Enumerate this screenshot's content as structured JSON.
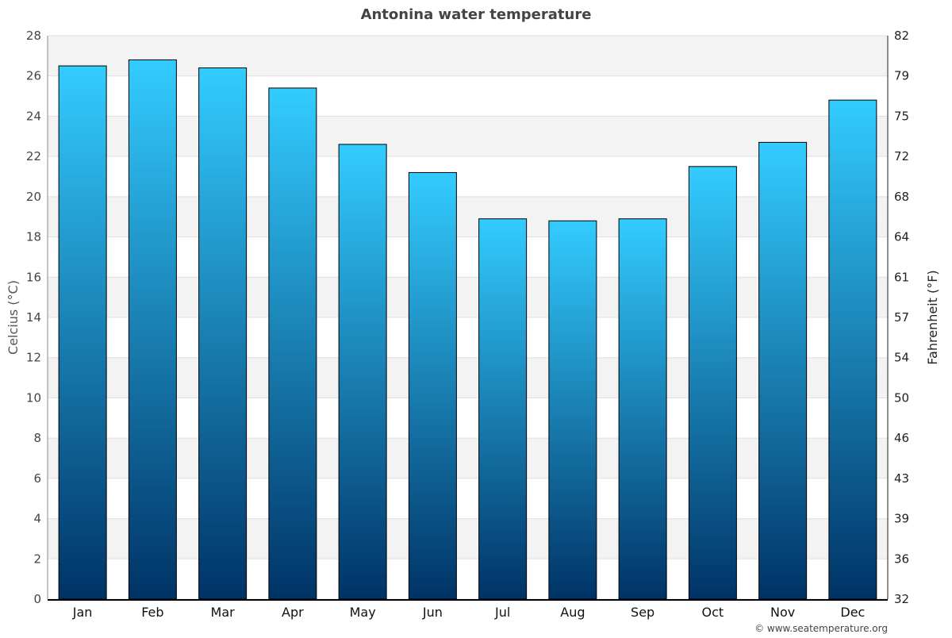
{
  "chart_data": {
    "type": "bar",
    "title": "Antonina water temperature",
    "ylabel": "Celcius (°C)",
    "ylabel_right": "Fahrenheit (°F)",
    "categories": [
      "Jan",
      "Feb",
      "Mar",
      "Apr",
      "May",
      "Jun",
      "Jul",
      "Aug",
      "Sep",
      "Oct",
      "Nov",
      "Dec"
    ],
    "values": [
      26.5,
      26.8,
      26.4,
      25.4,
      22.6,
      21.2,
      18.9,
      18.8,
      18.9,
      21.5,
      22.7,
      24.8
    ],
    "ylim": [
      0,
      28
    ],
    "yticks": [
      0,
      2,
      4,
      6,
      8,
      10,
      12,
      14,
      16,
      18,
      20,
      22,
      24,
      26,
      28
    ],
    "yticks_right": [
      "32",
      "36",
      "39",
      "43",
      "46",
      "50",
      "54",
      "57",
      "61",
      "64",
      "68",
      "72",
      "75",
      "79",
      "82"
    ],
    "grid": true,
    "colors": {
      "bar_top": "#33ccff",
      "bar_bottom": "#003366",
      "band": "#f3f3f3",
      "grid": "#e0e0e0"
    }
  },
  "credit": "© www.seatemperature.org"
}
